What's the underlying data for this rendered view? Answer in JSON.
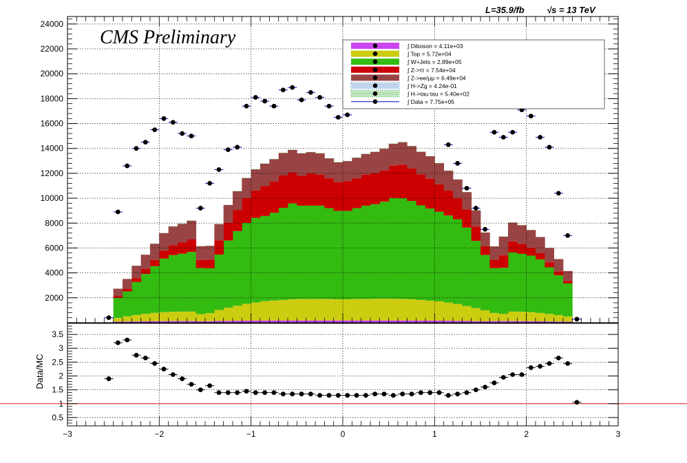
{
  "header": {
    "lumi_label": "L=35.9/fb",
    "energy_label": "√s = 13 TeV",
    "cms_label": "CMS Preliminary"
  },
  "legend_entries": [
    {
      "label": "∫ Diboson = 4.11e+03",
      "color": "#cc44ee"
    },
    {
      "label": "∫ Top = 5.72e+04",
      "color": "#cccc11"
    },
    {
      "label": "∫ W+Jets = 2.89e+05",
      "color": "#33bb11"
    },
    {
      "label": "∫ Z->ττ = 7.54e+04",
      "color": "#cc0000"
    },
    {
      "label": "∫ Z->ee/μμ = 6.49e+04",
      "color": "#994444"
    },
    {
      "label": "∫ H->Zg = 4.24e-01",
      "color": "#4488cc"
    },
    {
      "label": "∫ H->tau tau = 5.40e+02",
      "color": "#33aa33"
    },
    {
      "label": "∫ Data = 7.75e+05",
      "color": "#0000cc"
    }
  ],
  "chart_data": [
    {
      "type": "bar",
      "stacked": true,
      "x_bin_edges": [
        -2.6,
        -2.5,
        -2.4,
        -2.3,
        -2.2,
        -2.1,
        -2.0,
        -1.9,
        -1.8,
        -1.7,
        -1.6,
        -1.5,
        -1.4,
        -1.3,
        -1.2,
        -1.1,
        -1.0,
        -0.9,
        -0.8,
        -0.7,
        -0.6,
        -0.5,
        -0.4,
        -0.3,
        -0.2,
        -0.1,
        0.0,
        0.1,
        0.2,
        0.3,
        0.4,
        0.5,
        0.6,
        0.7,
        0.8,
        0.9,
        1.0,
        1.1,
        1.2,
        1.3,
        1.4,
        1.5,
        1.6,
        1.7,
        1.8,
        1.9,
        2.0,
        2.1,
        2.2,
        2.3,
        2.4,
        2.5,
        2.6
      ],
      "xlim": [
        -3,
        3
      ],
      "ylim": [
        0,
        24600
      ],
      "yticks": [
        2000,
        4000,
        6000,
        8000,
        10000,
        12000,
        14000,
        16000,
        18000,
        20000,
        22000,
        24000
      ],
      "xticks": [
        -3,
        -2,
        -1,
        0,
        1,
        2,
        3
      ],
      "series": [
        {
          "name": "Diboson",
          "color": "#cc44ee",
          "values": [
            0,
            80,
            90,
            100,
            110,
            120,
            125,
            130,
            130,
            130,
            110,
            120,
            140,
            150,
            160,
            165,
            170,
            175,
            180,
            180,
            180,
            180,
            180,
            180,
            180,
            180,
            180,
            180,
            180,
            180,
            180,
            180,
            180,
            180,
            175,
            170,
            165,
            160,
            150,
            140,
            120,
            110,
            130,
            130,
            130,
            125,
            120,
            110,
            100,
            90,
            80,
            0
          ]
        },
        {
          "name": "Top",
          "color": "#cccc11",
          "values": [
            0,
            300,
            420,
            520,
            600,
            670,
            720,
            750,
            760,
            760,
            580,
            650,
            880,
            1050,
            1200,
            1350,
            1450,
            1550,
            1600,
            1650,
            1700,
            1720,
            1720,
            1720,
            1720,
            1700,
            1700,
            1720,
            1720,
            1740,
            1740,
            1740,
            1720,
            1700,
            1650,
            1600,
            1550,
            1450,
            1350,
            1200,
            1050,
            880,
            650,
            580,
            760,
            750,
            720,
            670,
            600,
            520,
            420,
            0
          ]
        },
        {
          "name": "W+Jets",
          "color": "#33bb11",
          "values": [
            0,
            1600,
            2000,
            2650,
            3200,
            3750,
            4300,
            4550,
            4650,
            4800,
            3700,
            3600,
            4450,
            5400,
            6000,
            6500,
            6800,
            6850,
            7050,
            7400,
            7700,
            7500,
            7500,
            7500,
            7300,
            7100,
            7100,
            7300,
            7500,
            7600,
            7800,
            8100,
            8100,
            7900,
            7600,
            7400,
            7200,
            7000,
            6800,
            6300,
            5400,
            4450,
            3600,
            3700,
            4750,
            4650,
            4550,
            4300,
            3750,
            3200,
            2650,
            0
          ]
        },
        {
          "name": "Z->tautau",
          "color": "#cc0000",
          "values": [
            0,
            150,
            200,
            300,
            400,
            500,
            650,
            800,
            900,
            1000,
            650,
            700,
            1150,
            1450,
            1700,
            2000,
            2200,
            2400,
            2500,
            2600,
            2500,
            2400,
            2600,
            2500,
            2400,
            2300,
            2400,
            2400,
            2500,
            2500,
            2500,
            2600,
            2700,
            2600,
            2500,
            2400,
            2200,
            2000,
            1700,
            1450,
            1150,
            700,
            650,
            1000,
            900,
            800,
            650,
            500,
            400,
            300,
            200,
            0
          ]
        },
        {
          "name": "Z->ee/mumu",
          "color": "#994444",
          "values": [
            0,
            600,
            800,
            1000,
            1150,
            1300,
            1400,
            1500,
            1500,
            1500,
            1100,
            1100,
            1300,
            1400,
            1500,
            1600,
            1700,
            1800,
            1800,
            1800,
            1800,
            1800,
            1700,
            1700,
            1600,
            1600,
            1600,
            1650,
            1650,
            1700,
            1750,
            1750,
            1800,
            1800,
            1800,
            1800,
            1700,
            1600,
            1500,
            1400,
            1300,
            1100,
            1100,
            1500,
            1500,
            1500,
            1400,
            1300,
            1150,
            1000,
            800,
            0
          ]
        },
        {
          "name": "H->Zg",
          "color": "#4488cc",
          "values": [
            0,
            0,
            0,
            0,
            0,
            0,
            0,
            0,
            0,
            0,
            0,
            0,
            0,
            0,
            0,
            0,
            0,
            0,
            0,
            0,
            0,
            0,
            0,
            0,
            0,
            0,
            0,
            0,
            0,
            0,
            0,
            0,
            0,
            0,
            0,
            0,
            0,
            0,
            0,
            0,
            0,
            0,
            0,
            0,
            0,
            0,
            0,
            0,
            0,
            0,
            0,
            0
          ]
        },
        {
          "name": "H->tau tau",
          "color": "#33aa33",
          "values": [
            0,
            3,
            4,
            5,
            6,
            7,
            8,
            9,
            9,
            9,
            7,
            7,
            9,
            10,
            11,
            12,
            13,
            13,
            14,
            14,
            14,
            14,
            14,
            14,
            14,
            14,
            14,
            14,
            14,
            14,
            14,
            14,
            14,
            14,
            14,
            13,
            13,
            12,
            11,
            10,
            9,
            7,
            7,
            9,
            9,
            9,
            8,
            7,
            6,
            5,
            4,
            0
          ]
        }
      ],
      "data_points": {
        "x": [
          -2.55,
          -2.45,
          -2.35,
          -2.25,
          -2.15,
          -2.05,
          -1.95,
          -1.85,
          -1.75,
          -1.65,
          -1.55,
          -1.45,
          -1.35,
          -1.25,
          -1.15,
          -1.05,
          -0.95,
          -0.85,
          -0.75,
          -0.65,
          -0.55,
          -0.45,
          -0.35,
          -0.25,
          -0.15,
          -0.05,
          0.05,
          0.15,
          0.25,
          0.35,
          0.45,
          0.55,
          0.65,
          0.75,
          0.85,
          0.95,
          1.05,
          1.15,
          1.25,
          1.35,
          1.45,
          1.55,
          1.65,
          1.75,
          1.85,
          1.95,
          2.05,
          2.15,
          2.25,
          2.35,
          2.45,
          2.55
        ],
        "y": [
          400,
          8900,
          12600,
          14000,
          14500,
          15500,
          16400,
          16100,
          15200,
          15000,
          9200,
          11200,
          12300,
          13900,
          14100,
          17400,
          18100,
          17800,
          17400,
          18700,
          18900,
          17900,
          18500,
          18100,
          17400,
          16500,
          16700,
          null,
          null,
          null,
          null,
          null,
          null,
          null,
          null,
          null,
          null,
          14300,
          12800,
          10800,
          9200,
          7500,
          15300,
          14900,
          15300,
          17100,
          16600,
          14900,
          14100,
          10400,
          7000,
          280
        ]
      },
      "ylabel": ""
    },
    {
      "type": "scatter",
      "x": [
        -2.55,
        -2.45,
        -2.35,
        -2.25,
        -2.15,
        -2.05,
        -1.95,
        -1.85,
        -1.75,
        -1.65,
        -1.55,
        -1.45,
        -1.35,
        -1.25,
        -1.15,
        -1.05,
        -0.95,
        -0.85,
        -0.75,
        -0.65,
        -0.55,
        -0.45,
        -0.35,
        -0.25,
        -0.15,
        -0.05,
        0.05,
        0.15,
        0.25,
        0.35,
        0.45,
        0.55,
        0.65,
        0.75,
        0.85,
        0.95,
        1.05,
        1.15,
        1.25,
        1.35,
        1.45,
        1.55,
        1.65,
        1.75,
        1.85,
        1.95,
        2.05,
        2.15,
        2.25,
        2.35,
        2.45,
        2.55
      ],
      "y": [
        1.9,
        3.2,
        3.3,
        2.75,
        2.65,
        2.45,
        2.25,
        2.05,
        1.9,
        1.7,
        1.5,
        1.65,
        1.4,
        1.4,
        1.4,
        1.45,
        1.4,
        1.4,
        1.4,
        1.35,
        1.35,
        1.35,
        1.35,
        1.3,
        1.3,
        1.3,
        1.3,
        1.3,
        1.3,
        1.35,
        1.35,
        1.3,
        1.35,
        1.35,
        1.4,
        1.4,
        1.4,
        1.3,
        1.35,
        1.4,
        1.5,
        1.6,
        1.75,
        1.95,
        2.05,
        2.05,
        2.3,
        2.35,
        2.45,
        2.65,
        2.45,
        1.05
      ],
      "xlim": [
        -3,
        3
      ],
      "ylim": [
        0.2,
        3.9
      ],
      "yticks": [
        0.5,
        1,
        1.5,
        2,
        2.5,
        3,
        3.5
      ],
      "ytick_labels": [
        "0.5",
        "1",
        "1.5",
        "2",
        "2.5",
        "3",
        "3.5"
      ],
      "xticks": [
        -3,
        -2,
        -1,
        0,
        1,
        2,
        3
      ],
      "xtick_labels": [
        "−3",
        "−2",
        "−1",
        "0",
        "1",
        "2",
        "3"
      ],
      "reference_line": 1,
      "ylabel": "Data/MC"
    }
  ],
  "upper_ytick_labels": [
    "2000",
    "4000",
    "6000",
    "8000",
    "10000",
    "12000",
    "14000",
    "16000",
    "18000",
    "20000",
    "22000",
    "24000"
  ]
}
